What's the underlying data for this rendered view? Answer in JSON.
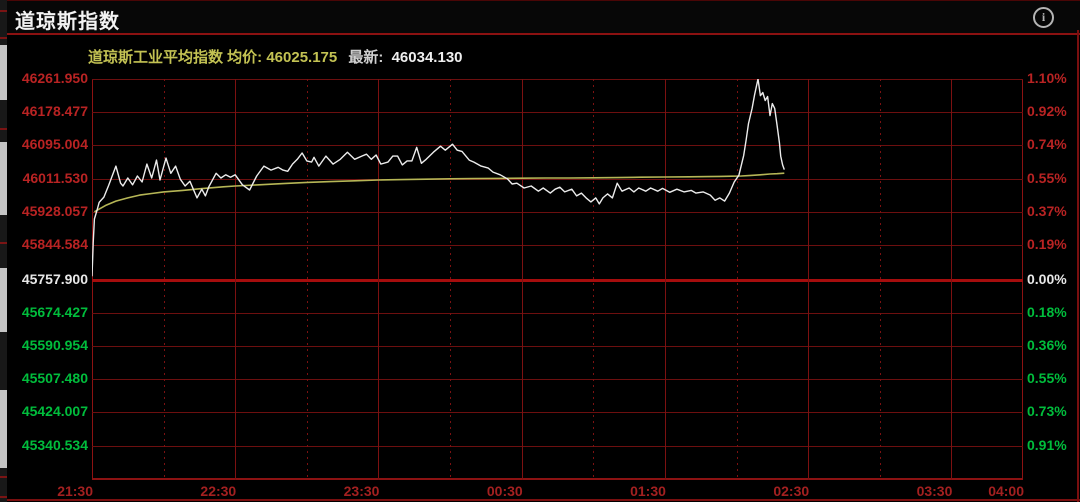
{
  "header": {
    "title": "道琼斯指数",
    "info_icon": "info"
  },
  "legend": {
    "avg_text": "道琼斯工业平均指数 均价: 46025.175",
    "last_label": "最新:",
    "last_value": "46034.130"
  },
  "colors": {
    "background": "#000000",
    "grid_h": "#6d0f0f",
    "grid_v": "#7c1111",
    "zero_line": "#a50d0d",
    "frame": "#8c1212",
    "price_line": "#ececec",
    "avg_line": "#b6b656",
    "label_up": "#b92323",
    "label_down": "#00bd3c",
    "label_flat": "#e8e8e8",
    "time_label": "#a32020"
  },
  "chart_data": {
    "type": "line",
    "title": "道琼斯工业平均指数 分时走势",
    "prev_close": 45757.9,
    "avg_price": 46025.175,
    "last_price": 46034.13,
    "ylim": [
      45253.85,
      46261.95
    ],
    "grid": {
      "solid_minutes": [
        60,
        120,
        180,
        240,
        300,
        360
      ],
      "dotted_minutes": [
        30,
        90,
        150,
        210,
        270,
        330
      ]
    },
    "x_axis": {
      "total_minutes": 390,
      "labels": [
        {
          "t": 0,
          "label": "21:30"
        },
        {
          "t": 60,
          "label": "22:30"
        },
        {
          "t": 120,
          "label": "23:30"
        },
        {
          "t": 180,
          "label": "00:30"
        },
        {
          "t": 240,
          "label": "01:30"
        },
        {
          "t": 300,
          "label": "02:30"
        },
        {
          "t": 360,
          "label": "03:30"
        },
        {
          "t": 390,
          "label": "04:00"
        }
      ]
    },
    "y_rows": [
      {
        "value": 46261.95,
        "left": "46261.950",
        "right": "1.10%",
        "cls": "c-red",
        "zero": false
      },
      {
        "value": 46178.477,
        "left": "46178.477",
        "right": "0.92%",
        "cls": "c-red",
        "zero": false
      },
      {
        "value": 46095.004,
        "left": "46095.004",
        "right": "0.74%",
        "cls": "c-red",
        "zero": false
      },
      {
        "value": 46011.53,
        "left": "46011.530",
        "right": "0.55%",
        "cls": "c-red",
        "zero": false
      },
      {
        "value": 45928.057,
        "left": "45928.057",
        "right": "0.37%",
        "cls": "c-red",
        "zero": false
      },
      {
        "value": 45844.584,
        "left": "45844.584",
        "right": "0.19%",
        "cls": "c-red",
        "zero": false
      },
      {
        "value": 45757.9,
        "left": "45757.900",
        "right": "0.00%",
        "cls": "c-white",
        "zero": true
      },
      {
        "value": 45674.427,
        "left": "45674.427",
        "right": "0.18%",
        "cls": "c-green",
        "zero": false
      },
      {
        "value": 45590.954,
        "left": "45590.954",
        "right": "0.36%",
        "cls": "c-green",
        "zero": false
      },
      {
        "value": 45507.48,
        "left": "45507.480",
        "right": "0.55%",
        "cls": "c-green",
        "zero": false
      },
      {
        "value": 45424.007,
        "left": "45424.007",
        "right": "0.73%",
        "cls": "c-green",
        "zero": false
      },
      {
        "value": 45340.534,
        "left": "45340.534",
        "right": "0.91%",
        "cls": "c-green",
        "zero": false
      }
    ],
    "series": [
      {
        "name": "price",
        "color": "#ececec",
        "width": 1.4,
        "points": [
          [
            0,
            45766
          ],
          [
            0.5,
            45850
          ],
          [
            1,
            45910
          ],
          [
            2,
            45930
          ],
          [
            3,
            45952
          ],
          [
            5,
            45965
          ],
          [
            7,
            45995
          ],
          [
            10,
            46043
          ],
          [
            12,
            46000
          ],
          [
            13,
            45993
          ],
          [
            15,
            46013
          ],
          [
            17,
            45996
          ],
          [
            19,
            46018
          ],
          [
            21,
            46003
          ],
          [
            23,
            46048
          ],
          [
            25,
            46013
          ],
          [
            27,
            46058
          ],
          [
            28.5,
            46008
          ],
          [
            31,
            46063
          ],
          [
            33,
            46025
          ],
          [
            35,
            46043
          ],
          [
            37,
            46010
          ],
          [
            39,
            45993
          ],
          [
            41,
            46005
          ],
          [
            44,
            45963
          ],
          [
            46,
            45985
          ],
          [
            47.5,
            45968
          ],
          [
            49,
            45992
          ],
          [
            52,
            46025
          ],
          [
            54,
            46013
          ],
          [
            56,
            46021
          ],
          [
            58,
            46015
          ],
          [
            60,
            46021
          ],
          [
            63,
            45996
          ],
          [
            66,
            45983
          ],
          [
            69,
            46018
          ],
          [
            72,
            46043
          ],
          [
            75,
            46033
          ],
          [
            78,
            46040
          ],
          [
            80,
            46033
          ],
          [
            82,
            46030
          ],
          [
            84,
            46048
          ],
          [
            86,
            46060
          ],
          [
            88,
            46076
          ],
          [
            90,
            46056
          ],
          [
            92,
            46053
          ],
          [
            93,
            46065
          ],
          [
            95,
            46043
          ],
          [
            98,
            46068
          ],
          [
            101,
            46048
          ],
          [
            104,
            46060
          ],
          [
            107,
            46078
          ],
          [
            110,
            46060
          ],
          [
            113,
            46068
          ],
          [
            115,
            46073
          ],
          [
            117,
            46060
          ],
          [
            119,
            46071
          ],
          [
            121,
            46048
          ],
          [
            124,
            46053
          ],
          [
            126,
            46068
          ],
          [
            128,
            46068
          ],
          [
            130,
            46046
          ],
          [
            132,
            46056
          ],
          [
            134,
            46056
          ],
          [
            136,
            46090
          ],
          [
            138,
            46050
          ],
          [
            140,
            46060
          ],
          [
            143,
            46078
          ],
          [
            146,
            46093
          ],
          [
            148,
            46083
          ],
          [
            151,
            46098
          ],
          [
            153,
            46083
          ],
          [
            155,
            46080
          ],
          [
            158,
            46058
          ],
          [
            160,
            46053
          ],
          [
            163,
            46043
          ],
          [
            166,
            46038
          ],
          [
            168,
            46028
          ],
          [
            171,
            46021
          ],
          [
            174,
            46011
          ],
          [
            176,
            45998
          ],
          [
            178,
            46000
          ],
          [
            181,
            45988
          ],
          [
            184,
            45993
          ],
          [
            187,
            45980
          ],
          [
            189,
            45988
          ],
          [
            192,
            45975
          ],
          [
            194,
            45985
          ],
          [
            196,
            45990
          ],
          [
            198,
            45978
          ],
          [
            201,
            45985
          ],
          [
            203,
            45968
          ],
          [
            205,
            45975
          ],
          [
            207,
            45963
          ],
          [
            209,
            45953
          ],
          [
            211,
            45963
          ],
          [
            212.5,
            45948
          ],
          [
            214,
            45963
          ],
          [
            216,
            45973
          ],
          [
            218,
            45963
          ],
          [
            220,
            46000
          ],
          [
            222,
            45980
          ],
          [
            225,
            45988
          ],
          [
            227,
            45978
          ],
          [
            229,
            45988
          ],
          [
            232,
            45980
          ],
          [
            234,
            45988
          ],
          [
            237,
            45980
          ],
          [
            239,
            45987
          ],
          [
            242,
            45977
          ],
          [
            245,
            45985
          ],
          [
            248,
            45978
          ],
          [
            251,
            45982
          ],
          [
            253,
            45975
          ],
          [
            256,
            45978
          ],
          [
            259,
            45970
          ],
          [
            261,
            45957
          ],
          [
            263,
            45963
          ],
          [
            265,
            45955
          ],
          [
            267,
            45975
          ],
          [
            269,
            46003
          ],
          [
            271,
            46020
          ],
          [
            273,
            46070
          ],
          [
            274,
            46108
          ],
          [
            275,
            46150
          ],
          [
            276.5,
            46188
          ],
          [
            277.5,
            46220
          ],
          [
            279,
            46262
          ],
          [
            280,
            46220
          ],
          [
            281,
            46228
          ],
          [
            282,
            46208
          ],
          [
            283,
            46218
          ],
          [
            284,
            46170
          ],
          [
            285,
            46200
          ],
          [
            286,
            46188
          ],
          [
            287,
            46145
          ],
          [
            288,
            46100
          ],
          [
            288.5,
            46068
          ],
          [
            289.3,
            46046
          ],
          [
            290,
            46034.13
          ]
        ]
      },
      {
        "name": "average",
        "color": "#b6b656",
        "width": 1.6,
        "points": [
          [
            1,
            45928
          ],
          [
            3,
            45935
          ],
          [
            6,
            45945
          ],
          [
            10,
            45955
          ],
          [
            15,
            45963
          ],
          [
            20,
            45970
          ],
          [
            25,
            45974
          ],
          [
            30,
            45978
          ],
          [
            38,
            45982
          ],
          [
            45,
            45986
          ],
          [
            55,
            45991
          ],
          [
            60,
            45993
          ],
          [
            70,
            45996
          ],
          [
            80,
            45999
          ],
          [
            90,
            46002
          ],
          [
            100,
            46004
          ],
          [
            110,
            46006
          ],
          [
            120,
            46008
          ],
          [
            130,
            46009
          ],
          [
            140,
            46010
          ],
          [
            150,
            46011
          ],
          [
            160,
            46011.5
          ],
          [
            170,
            46012
          ],
          [
            180,
            46012.5
          ],
          [
            190,
            46013
          ],
          [
            200,
            46013
          ],
          [
            210,
            46013.5
          ],
          [
            220,
            46014
          ],
          [
            230,
            46015
          ],
          [
            240,
            46015.5
          ],
          [
            250,
            46016
          ],
          [
            258,
            46016.5
          ],
          [
            263,
            46017
          ],
          [
            268,
            46017.5
          ],
          [
            272,
            46018
          ],
          [
            276,
            46019.5
          ],
          [
            280,
            46021
          ],
          [
            284,
            46023
          ],
          [
            287,
            46024
          ],
          [
            290,
            46025.175
          ]
        ]
      }
    ]
  },
  "left_strip_segments": [
    [
      45,
      55
    ],
    [
      142,
      73
    ],
    [
      268,
      64
    ],
    [
      390,
      78
    ]
  ],
  "left_strip_marks": [
    10,
    37,
    128,
    242,
    476,
    496
  ]
}
